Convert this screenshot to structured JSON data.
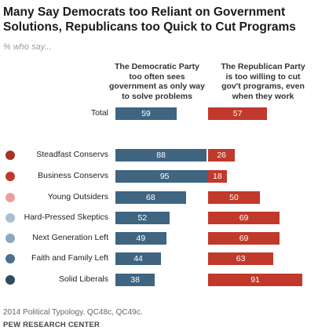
{
  "header": {
    "title_line1": "Many Say Democrats too Reliant on Government",
    "title_line2": "Solutions, Republicans too Quick to Cut Programs",
    "subtitle": "% who say..."
  },
  "columns": {
    "dem": [
      "The Democratic Party",
      "too often sees",
      "government as only way",
      "to solve problems"
    ],
    "rep": [
      "The Republican Party",
      "is too willing to cut",
      "gov't programs, even",
      "when they work"
    ]
  },
  "colors": {
    "dem_bar": "#3f6581",
    "rep_bar": "#c0392b"
  },
  "chart_data": {
    "type": "bar",
    "orientation": "horizontal",
    "categories": [
      "Total",
      "Steadfast Conservs",
      "Business Conservs",
      "Young Outsiders",
      "Hard-Pressed Skeptics",
      "Next Generation Left",
      "Faith and Family Left",
      "Solid Liberals"
    ],
    "marker_colors": [
      "",
      "#a93226",
      "#c0392b",
      "#e8a09a",
      "#a9bfd4",
      "#8aa7c0",
      "#4d6f8a",
      "#2f4a5f"
    ],
    "series": [
      {
        "values": [
          59,
          88,
          95,
          68,
          52,
          49,
          44,
          38
        ]
      },
      {
        "values": [
          57,
          26,
          18,
          50,
          69,
          69,
          63,
          91
        ]
      }
    ],
    "xlim": [
      0,
      100
    ]
  },
  "footer": {
    "source": "2014 Political Typology. QC48c, QC49c.",
    "org": "PEW RESEARCH CENTER"
  }
}
